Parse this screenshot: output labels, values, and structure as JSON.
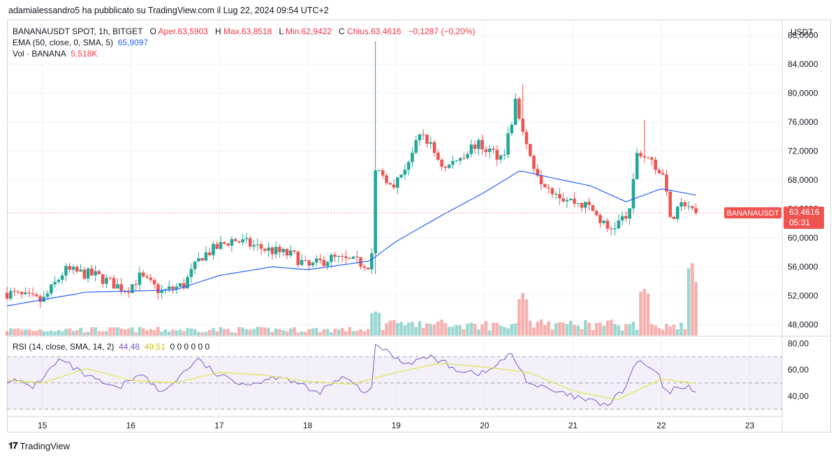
{
  "header": {
    "publish_line": "adamialessandro5 ha pubblicato su TradingView.com il Lug 22, 2024 09:54 UTC+2"
  },
  "legend": {
    "symbol": "BANANAUSDT SPOT, 1h, BITGET",
    "open_label": "O",
    "open_value": "Aper.63,5903",
    "high_label": "H",
    "high_value": "Max.63,8518",
    "low_label": "L",
    "low_value": "Min.62,9422",
    "close_label": "C",
    "close_value": "Chius.63,4616",
    "change_value": "−0,1287 (−0,20%)",
    "ema_label": "EMA (50, close, 0, SMA, 5)",
    "ema_value": "65,9097",
    "vol_label": "Vol · BANANA",
    "vol_value": "5,518K",
    "rsi_label": "RSI (14, close, SMA, 14, 2)",
    "rsi_value": "44,48",
    "rsi_ma_value": "49,51",
    "rsi_extra": "0 0 0 0 0 0"
  },
  "price_axis": {
    "currency": "USDT",
    "ticks": [
      "88,0000",
      "84,0000",
      "80,0000",
      "76,0000",
      "72,0000",
      "68,0000",
      "64,0000",
      "60,0000",
      "56,0000",
      "52,0000",
      "48,0000"
    ],
    "current_symbol": "BANANAUSDT",
    "current_price": "63,4616",
    "countdown": "05:31"
  },
  "rsi_axis": {
    "ticks": [
      "80,00",
      "60,00",
      "40,00"
    ]
  },
  "time_axis": {
    "ticks": [
      "15",
      "16",
      "17",
      "18",
      "19",
      "20",
      "21",
      "22",
      "23"
    ]
  },
  "footer": {
    "brand": "TradingView"
  },
  "colors": {
    "up": "#26a69a",
    "down": "#ef5350",
    "ema": "#2962ff",
    "rsi": "#7e57c2",
    "rsi_ma": "#e5e34a"
  },
  "chart_data": {
    "type": "candlestick",
    "symbol": "BANANAUSDT",
    "interval": "1h",
    "ylim": [
      46.5,
      90.0
    ],
    "x_start_day": 14.6,
    "x_end_day": 22.6,
    "key_points": [
      {
        "day": 14.6,
        "close": 52.4
      },
      {
        "day": 15.0,
        "close": 51.2
      },
      {
        "day": 15.25,
        "close": 55.5
      },
      {
        "day": 15.6,
        "close": 54.8
      },
      {
        "day": 15.95,
        "close": 52.8
      },
      {
        "day": 16.1,
        "close": 54.6
      },
      {
        "day": 16.35,
        "close": 52.5
      },
      {
        "day": 16.6,
        "close": 53.5
      },
      {
        "day": 16.8,
        "close": 57.5
      },
      {
        "day": 17.15,
        "close": 59.8
      },
      {
        "day": 17.5,
        "close": 58.5
      },
      {
        "day": 17.85,
        "close": 57.5
      },
      {
        "day": 18.0,
        "close": 55.9
      },
      {
        "day": 18.25,
        "close": 57.2
      },
      {
        "day": 18.72,
        "close": 56.3
      },
      {
        "day": 18.76,
        "close": 69.2
      },
      {
        "day": 19.0,
        "close": 67.5
      },
      {
        "day": 19.3,
        "close": 74.5
      },
      {
        "day": 19.55,
        "close": 69.5
      },
      {
        "day": 19.9,
        "close": 73.0
      },
      {
        "day": 20.2,
        "close": 71.2
      },
      {
        "day": 20.3,
        "close": 75.5
      },
      {
        "day": 20.35,
        "close": 78.8
      },
      {
        "day": 20.48,
        "close": 72.0
      },
      {
        "day": 20.65,
        "close": 68.0
      },
      {
        "day": 20.9,
        "close": 65.5
      },
      {
        "day": 21.2,
        "close": 64.2
      },
      {
        "day": 21.4,
        "close": 61.0
      },
      {
        "day": 21.65,
        "close": 63.5
      },
      {
        "day": 21.72,
        "close": 72.0
      },
      {
        "day": 21.9,
        "close": 70.5
      },
      {
        "day": 22.05,
        "close": 68.0
      },
      {
        "day": 22.1,
        "close": 62.2
      },
      {
        "day": 22.27,
        "close": 65.0
      },
      {
        "day": 22.4,
        "close": 63.46
      }
    ],
    "spikes": [
      {
        "day": 18.76,
        "high": 87.2,
        "low": 55.0
      },
      {
        "day": 20.42,
        "high": 81.2
      },
      {
        "day": 21.82,
        "high": 76.3
      }
    ],
    "ema_key_points": [
      {
        "day": 14.6,
        "ema": 50.6
      },
      {
        "day": 15.5,
        "ema": 52.5
      },
      {
        "day": 16.5,
        "ema": 52.8
      },
      {
        "day": 17.0,
        "ema": 54.8
      },
      {
        "day": 17.6,
        "ema": 56.0
      },
      {
        "day": 18.0,
        "ema": 55.6
      },
      {
        "day": 18.7,
        "ema": 56.8
      },
      {
        "day": 19.0,
        "ema": 59.5
      },
      {
        "day": 19.5,
        "ema": 63.0
      },
      {
        "day": 20.0,
        "ema": 66.3
      },
      {
        "day": 20.4,
        "ema": 69.3
      },
      {
        "day": 20.8,
        "ema": 68.2
      },
      {
        "day": 21.2,
        "ema": 67.2
      },
      {
        "day": 21.6,
        "ema": 65.0
      },
      {
        "day": 22.0,
        "ema": 66.8
      },
      {
        "day": 22.4,
        "ema": 65.9
      }
    ],
    "volume_spikes": [
      {
        "day": 18.75,
        "level": 0.28
      },
      {
        "day": 20.45,
        "level": 0.45
      },
      {
        "day": 21.8,
        "level": 0.55
      },
      {
        "day": 22.35,
        "level": 0.72
      },
      {
        "day": 22.4,
        "level": 0.78
      }
    ],
    "rsi": {
      "upper": 70,
      "lower": 30,
      "ylim": [
        25,
        85
      ],
      "key_points": [
        {
          "day": 14.6,
          "v": 53
        },
        {
          "day": 14.9,
          "v": 47
        },
        {
          "day": 15.2,
          "v": 68
        },
        {
          "day": 15.5,
          "v": 55
        },
        {
          "day": 15.85,
          "v": 45
        },
        {
          "day": 16.1,
          "v": 58
        },
        {
          "day": 16.35,
          "v": 42
        },
        {
          "day": 16.75,
          "v": 68
        },
        {
          "day": 17.0,
          "v": 55
        },
        {
          "day": 17.35,
          "v": 49
        },
        {
          "day": 17.7,
          "v": 56
        },
        {
          "day": 18.1,
          "v": 42
        },
        {
          "day": 18.4,
          "v": 54
        },
        {
          "day": 18.72,
          "v": 40
        },
        {
          "day": 18.76,
          "v": 80
        },
        {
          "day": 19.1,
          "v": 65
        },
        {
          "day": 19.4,
          "v": 70
        },
        {
          "day": 19.7,
          "v": 60
        },
        {
          "day": 20.0,
          "v": 57
        },
        {
          "day": 20.3,
          "v": 72
        },
        {
          "day": 20.5,
          "v": 50
        },
        {
          "day": 20.8,
          "v": 43
        },
        {
          "day": 21.2,
          "v": 36
        },
        {
          "day": 21.4,
          "v": 33
        },
        {
          "day": 21.6,
          "v": 47
        },
        {
          "day": 21.72,
          "v": 67
        },
        {
          "day": 21.95,
          "v": 58
        },
        {
          "day": 22.05,
          "v": 42
        },
        {
          "day": 22.25,
          "v": 48
        },
        {
          "day": 22.4,
          "v": 44.48
        }
      ],
      "ma_key_points": [
        {
          "day": 14.6,
          "v": 52
        },
        {
          "day": 15.0,
          "v": 50
        },
        {
          "day": 15.5,
          "v": 61
        },
        {
          "day": 16.0,
          "v": 52
        },
        {
          "day": 16.5,
          "v": 50
        },
        {
          "day": 17.0,
          "v": 58
        },
        {
          "day": 17.5,
          "v": 56
        },
        {
          "day": 18.0,
          "v": 51
        },
        {
          "day": 18.5,
          "v": 49
        },
        {
          "day": 19.0,
          "v": 58
        },
        {
          "day": 19.5,
          "v": 65
        },
        {
          "day": 20.0,
          "v": 62
        },
        {
          "day": 20.5,
          "v": 58
        },
        {
          "day": 21.0,
          "v": 44
        },
        {
          "day": 21.5,
          "v": 37
        },
        {
          "day": 22.0,
          "v": 53
        },
        {
          "day": 22.4,
          "v": 49.51
        }
      ]
    }
  }
}
